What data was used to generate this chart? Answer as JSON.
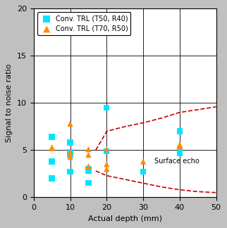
{
  "title": "",
  "xlabel": "Actual depth (mm)",
  "ylabel": "Signal to noise ratio",
  "xlim": [
    0,
    50
  ],
  "ylim": [
    0,
    20
  ],
  "xticks": [
    0,
    10,
    20,
    30,
    40,
    50
  ],
  "yticks": [
    0,
    5,
    10,
    15,
    20
  ],
  "series1_label": "Conv. TRL (T50, R40)",
  "series1_color": "#00E5FF",
  "series1_marker": "s",
  "series1_x": [
    5,
    5,
    5,
    10,
    10,
    10,
    10,
    15,
    15,
    15,
    20,
    20,
    30,
    40,
    40,
    40
  ],
  "series1_y": [
    6.4,
    3.8,
    2.0,
    5.8,
    4.8,
    4.5,
    2.7,
    3.0,
    2.8,
    1.5,
    9.5,
    4.9,
    2.7,
    7.0,
    5.0,
    4.7
  ],
  "series2_label": "Conv. TRL (T70, R50)",
  "series2_color": "#FF8C00",
  "series2_marker": "^",
  "series2_x": [
    5,
    5,
    10,
    10,
    10,
    15,
    15,
    15,
    20,
    20,
    20,
    30,
    40,
    40
  ],
  "series2_y": [
    5.3,
    5.2,
    7.8,
    4.8,
    4.3,
    5.1,
    4.5,
    3.3,
    5.1,
    3.5,
    3.0,
    3.8,
    5.6,
    5.4
  ],
  "dashed_upper_x": [
    17,
    20,
    25,
    30,
    35,
    40,
    45,
    50
  ],
  "dashed_upper_y": [
    5.0,
    7.0,
    7.5,
    7.9,
    8.4,
    9.0,
    9.3,
    9.6
  ],
  "dashed_lower_x": [
    17,
    20,
    25,
    30,
    35,
    40,
    45,
    50
  ],
  "dashed_lower_y": [
    2.8,
    2.3,
    1.9,
    1.5,
    1.1,
    0.8,
    0.6,
    0.5
  ],
  "surface_echo_x": 33,
  "surface_echo_y": 3.8,
  "background_color": "#c0c0c0",
  "plot_bg_color": "#ffffff",
  "grid_color": "#000000",
  "dashed_color": "#CC0000",
  "marker_size": 6,
  "legend_fontsize": 7,
  "axis_fontsize": 8,
  "tick_fontsize": 8
}
